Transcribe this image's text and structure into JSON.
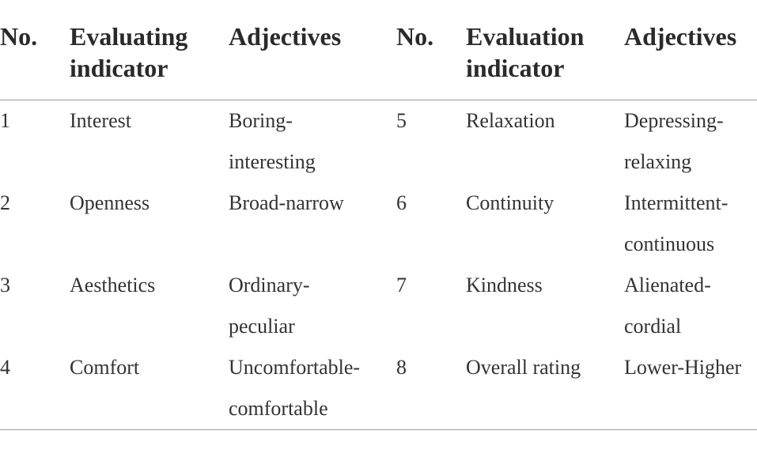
{
  "header": {
    "no_1": "No.",
    "indicator_1": [
      "Evaluating",
      "indicator"
    ],
    "adjectives_1": "Adjectives",
    "no_2": "No.",
    "indicator_2": [
      "Evaluation",
      "indicator"
    ],
    "adjectives_2": "Adjectives"
  },
  "rows": [
    {
      "no_left": "1",
      "indicator_left": "Interest",
      "adj_left": [
        "Boring-",
        "interesting"
      ],
      "no_right": "5",
      "indicator_right": "Relaxation",
      "adj_right": [
        "Depressing-",
        "relaxing"
      ]
    },
    {
      "no_left": "2",
      "indicator_left": "Openness",
      "adj_left": [
        "Broad-narrow"
      ],
      "no_right": "6",
      "indicator_right": "Continuity",
      "adj_right": [
        "Intermittent-",
        "continuous"
      ]
    },
    {
      "no_left": "3",
      "indicator_left": "Aesthetics",
      "adj_left": [
        "Ordinary-",
        "peculiar"
      ],
      "no_right": "7",
      "indicator_right": "Kindness",
      "adj_right": [
        "Alienated-",
        "cordial"
      ]
    },
    {
      "no_left": "4",
      "indicator_left": "Comfort",
      "adj_left": [
        "Uncomfortable-",
        "comfortable"
      ],
      "no_right": "8",
      "indicator_right": "Overall rating",
      "adj_right": [
        "Lower-Higher"
      ]
    }
  ]
}
